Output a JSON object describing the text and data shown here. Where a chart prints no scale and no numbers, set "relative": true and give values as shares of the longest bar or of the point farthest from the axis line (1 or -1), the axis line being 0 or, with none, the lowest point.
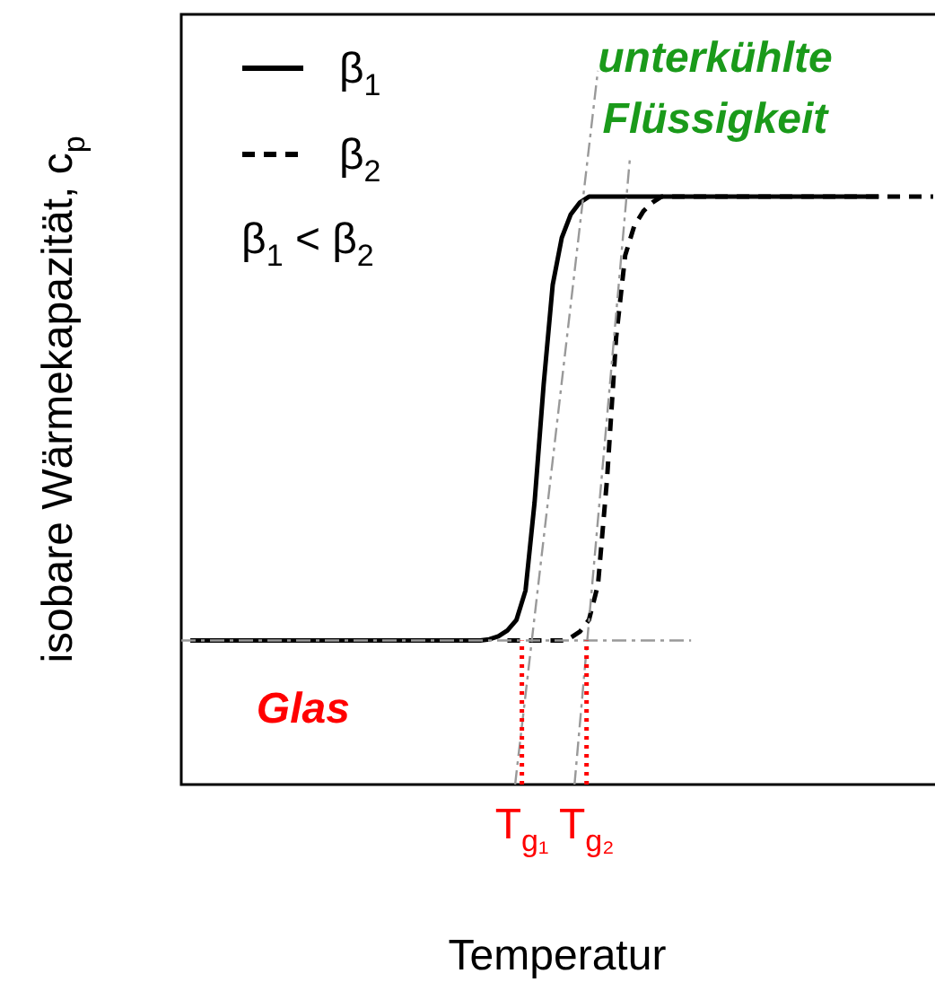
{
  "chart_data": {
    "type": "line",
    "relative": true,
    "xlabel": "Temperatur",
    "ylabel": "isobare Wärmekapazität, c$_{p}$",
    "legend": "top left",
    "marker": "none",
    "tick_labels": false,
    "ref_lines": [
      {
        "axis": "y",
        "value": 0.245,
        "color": "#999999",
        "line_style": "dashed"
      }
    ],
    "categories": [
      null,
      null,
      null,
      null,
      null,
      null,
      null,
      null,
      null,
      null,
      null,
      null,
      null,
      null,
      null,
      null,
      null,
      null,
      null,
      null,
      null,
      null,
      null,
      null,
      null,
      null,
      null,
      null,
      null,
      null,
      null,
      null,
      null,
      null,
      null,
      null,
      null,
      null,
      null,
      null,
      null,
      null,
      null,
      null,
      null,
      null,
      null,
      null,
      null,
      null,
      null,
      null,
      null,
      null,
      null,
      null,
      null,
      null,
      null,
      null,
      null,
      null,
      null,
      null,
      null,
      null,
      null,
      null,
      null,
      null,
      null,
      null,
      null,
      null,
      null,
      null,
      null,
      null,
      null,
      null,
      null,
      null,
      null,
      null
    ],
    "series": [
      {
        "name": "β$_{1}$",
        "color": "#000000",
        "line_style": "solid",
        "values": [
          null,
          0.245,
          0.245,
          0.245,
          0.245,
          0.245,
          0.245,
          0.245,
          0.245,
          0.245,
          0.245,
          0.245,
          0.245,
          0.245,
          0.245,
          0.245,
          0.245,
          0.245,
          0.245,
          0.245,
          0.245,
          0.245,
          0.245,
          0.245,
          0.245,
          0.245,
          0.245,
          0.245,
          0.245,
          0.245,
          0.245,
          0.245,
          0.245,
          0.245,
          0.247,
          0.252,
          0.262,
          0.28,
          0.33,
          0.48,
          0.68,
          0.85,
          0.93,
          0.97,
          0.99,
          1.0,
          1.0,
          1.0,
          1.0,
          1.0,
          1.0,
          1.0,
          1.0,
          1.0,
          1.0,
          1.0,
          1.0,
          1.0,
          1.0,
          1.0,
          1.0,
          1.0,
          1.0,
          1.0,
          1.0,
          1.0,
          1.0,
          1.0,
          1.0,
          1.0,
          1.0,
          1.0,
          1.0,
          1.0,
          1.0,
          1.0,
          1.0,
          1.0,
          null,
          null,
          null,
          null,
          null,
          null
        ]
      },
      {
        "name": "β$_{2}$",
        "color": "#000000",
        "line_style": "dashed",
        "values": [
          null,
          null,
          null,
          null,
          null,
          null,
          null,
          null,
          null,
          null,
          null,
          null,
          null,
          null,
          null,
          null,
          null,
          null,
          null,
          null,
          null,
          null,
          null,
          null,
          null,
          null,
          null,
          null,
          null,
          null,
          null,
          null,
          null,
          null,
          null,
          null,
          0.245,
          0.245,
          0.245,
          0.245,
          0.245,
          0.245,
          0.245,
          0.25,
          0.26,
          0.28,
          0.34,
          0.52,
          0.76,
          0.9,
          0.95,
          0.975,
          0.99,
          1.0,
          1.0,
          1.0,
          1.0,
          1.0,
          1.0,
          1.0,
          1.0,
          1.0,
          1.0,
          1.0,
          1.0,
          1.0,
          1.0,
          1.0,
          1.0,
          1.0,
          1.0,
          1.0,
          1.0,
          1.0,
          1.0,
          1.0,
          1.0,
          1.0,
          1.0,
          1.0,
          1.0,
          1.0,
          1.0,
          1.0
        ]
      }
    ],
    "annotations": [
      "β$_{1}$ < β$_{2}$",
      "unterkühlte Flüssigkeit",
      "Glas",
      "T$_{g₁}$",
      "T$_{g₂}$"
    ]
  }
}
